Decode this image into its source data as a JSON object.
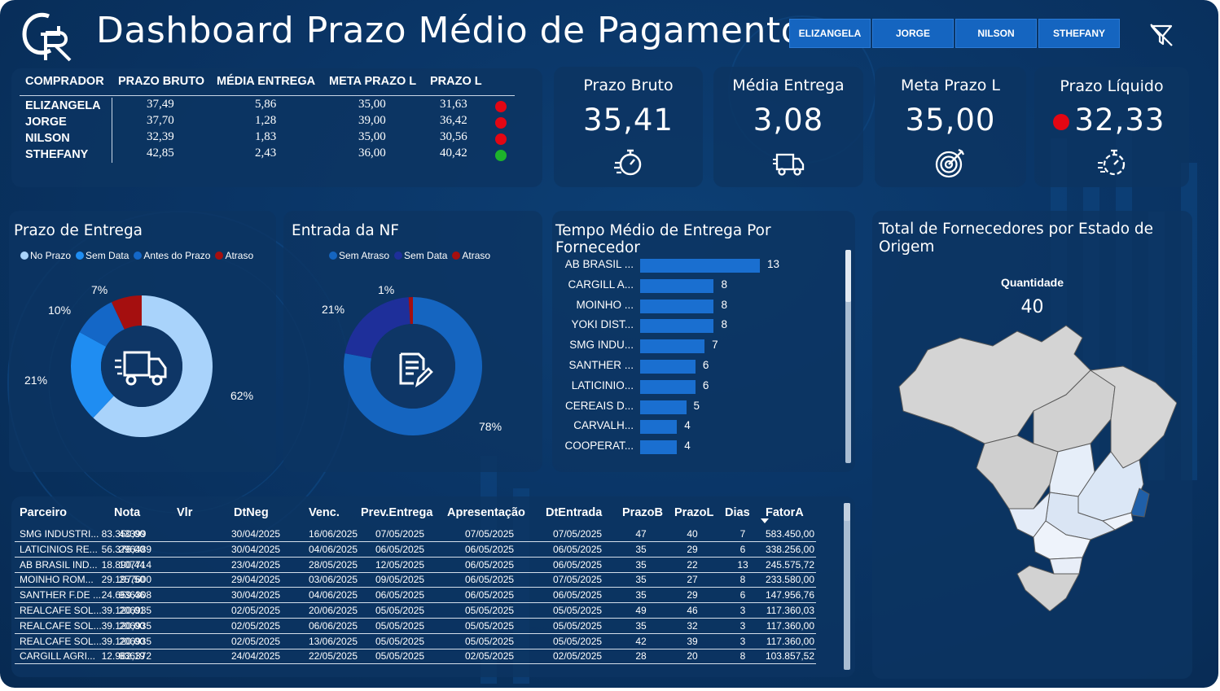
{
  "header": {
    "title": "Dashboard Prazo Médio de Pagamento",
    "buyer_buttons": [
      "ELIZANGELA",
      "JORGE",
      "NILSON",
      "STHEFANY"
    ]
  },
  "summary": {
    "headers": [
      "COMPRADOR",
      "PRAZO BRUTO",
      "MÉDIA ENTREGA",
      "META PRAZO L",
      "PRAZO L"
    ],
    "rows": [
      {
        "name": "ELIZANGELA",
        "bruto": "37,49",
        "entrega": "5,86",
        "meta": "35,00",
        "prazo_l": "31,63",
        "status": "red"
      },
      {
        "name": "JORGE",
        "bruto": "37,70",
        "entrega": "1,28",
        "meta": "39,00",
        "prazo_l": "36,42",
        "status": "red"
      },
      {
        "name": "NILSON",
        "bruto": "32,39",
        "entrega": "1,83",
        "meta": "35,00",
        "prazo_l": "30,56",
        "status": "red"
      },
      {
        "name": "STHEFANY",
        "bruto": "42,85",
        "entrega": "2,43",
        "meta": "36,00",
        "prazo_l": "40,42",
        "status": "green"
      }
    ],
    "status_colors": {
      "red": "#e30613",
      "green": "#1db32b"
    }
  },
  "kpis": [
    {
      "label": "Prazo Bruto",
      "value": "35,41",
      "icon": "stopwatch-icon"
    },
    {
      "label": "Média Entrega",
      "value": "3,08",
      "icon": "truck-icon"
    },
    {
      "label": "Meta Prazo L",
      "value": "35,00",
      "icon": "target-icon"
    },
    {
      "label": "Prazo Líquido",
      "value": "32,33",
      "icon": "fast-timer-icon",
      "indicator": "red"
    }
  ],
  "prazo_entrega": {
    "title": "Prazo de Entrega",
    "legend": [
      "No Prazo",
      "Sem Data",
      "Antes do Prazo",
      "Atraso"
    ],
    "labels": [
      "62%",
      "21%",
      "10%",
      "7%"
    ]
  },
  "entrada_nf": {
    "title": "Entrada da NF",
    "legend": [
      "Sem Atraso",
      "Sem Data",
      "Atraso"
    ],
    "labels": [
      "78%",
      "21%",
      "1%"
    ]
  },
  "fornecedor_chart": {
    "title": "Tempo Médio de Entrega Por Fornecedor"
  },
  "chart_data": [
    {
      "type": "pie",
      "title": "Prazo de Entrega",
      "categories": [
        "No Prazo",
        "Sem Data",
        "Antes do Prazo",
        "Atraso"
      ],
      "values": [
        62,
        21,
        10,
        7
      ],
      "colors": [
        "#a9d3fb",
        "#1f8df2",
        "#1467c7",
        "#a50f0f"
      ],
      "legend": "top"
    },
    {
      "type": "pie",
      "title": "Entrada da NF",
      "categories": [
        "Sem Atraso",
        "Sem Data",
        "Atraso"
      ],
      "values": [
        78,
        21,
        1
      ],
      "colors": [
        "#1565c0",
        "#1e2f9a",
        "#a50f0f"
      ],
      "legend": "top"
    },
    {
      "type": "bar",
      "title": "Tempo Médio de Entrega Por Fornecedor",
      "categories": [
        "AB BRASIL ...",
        "CARGILL A...",
        "MOINHO ...",
        "YOKI DIST...",
        "SMG INDU...",
        "SANTHER ...",
        "LATICINIO...",
        "CEREAIS D...",
        "CARVALH...",
        "COOPERAT..."
      ],
      "values": [
        13,
        8,
        8,
        8,
        7,
        6,
        6,
        5,
        4,
        4
      ],
      "orientation": "horizontal",
      "xlim": [
        0,
        13
      ]
    }
  ],
  "detail_table": {
    "headers": [
      "Parceiro",
      "Nota",
      "Vlr",
      "DtNeg",
      "Venc.",
      "Prev.Entrega",
      "Apresentação",
      "DtEntrada",
      "PrazoB",
      "PrazoL",
      "Dias",
      "FatorA"
    ],
    "rows": [
      [
        "SMG INDUSTRI...",
        "43399",
        "83.350,00",
        "30/04/2025",
        "16/06/2025",
        "07/05/2025",
        "07/05/2025",
        "07/05/2025",
        "47",
        "40",
        "7",
        "583.450,00"
      ],
      [
        "LATICINIOS RE...",
        "296489",
        "56.376,00",
        "30/04/2025",
        "04/06/2025",
        "06/05/2025",
        "06/05/2025",
        "06/05/2025",
        "35",
        "29",
        "6",
        "338.256,00"
      ],
      [
        "AB BRASIL IND...",
        "107714",
        "18.890,44",
        "23/04/2025",
        "28/05/2025",
        "12/05/2025",
        "06/05/2025",
        "06/05/2025",
        "35",
        "22",
        "13",
        "245.575,72"
      ],
      [
        "MOINHO ROM...",
        "257600",
        "29.197,50",
        "29/04/2025",
        "03/06/2025",
        "09/05/2025",
        "06/05/2025",
        "07/05/2025",
        "35",
        "27",
        "8",
        "233.580,00"
      ],
      [
        "SANTHER F.DE ...",
        "936308",
        "24.659,46",
        "30/04/2025",
        "04/06/2025",
        "06/05/2025",
        "06/05/2025",
        "06/05/2025",
        "35",
        "29",
        "6",
        "147.956,76"
      ],
      [
        "REALCAFE SOL...",
        "206935",
        "39.120,01",
        "02/05/2025",
        "20/06/2025",
        "05/05/2025",
        "05/05/2025",
        "05/05/2025",
        "49",
        "46",
        "3",
        "117.360,03"
      ],
      [
        "REALCAFE SOL...",
        "206935",
        "39.120,00",
        "02/05/2025",
        "06/06/2025",
        "05/05/2025",
        "05/05/2025",
        "05/05/2025",
        "35",
        "32",
        "3",
        "117.360,00"
      ],
      [
        "REALCAFE SOL...",
        "206935",
        "39.120,00",
        "02/05/2025",
        "13/06/2025",
        "05/05/2025",
        "05/05/2025",
        "05/05/2025",
        "42",
        "39",
        "3",
        "117.360,00"
      ],
      [
        "CARGILL AGRI...",
        "836372",
        "12.982,19",
        "24/04/2025",
        "22/05/2025",
        "05/05/2025",
        "02/05/2025",
        "02/05/2025",
        "28",
        "20",
        "8",
        "103.857,52"
      ]
    ]
  },
  "map": {
    "title": "Total de Fornecedores por Estado de Origem",
    "quantity_label": "Quantidade",
    "quantity_value": "40"
  }
}
